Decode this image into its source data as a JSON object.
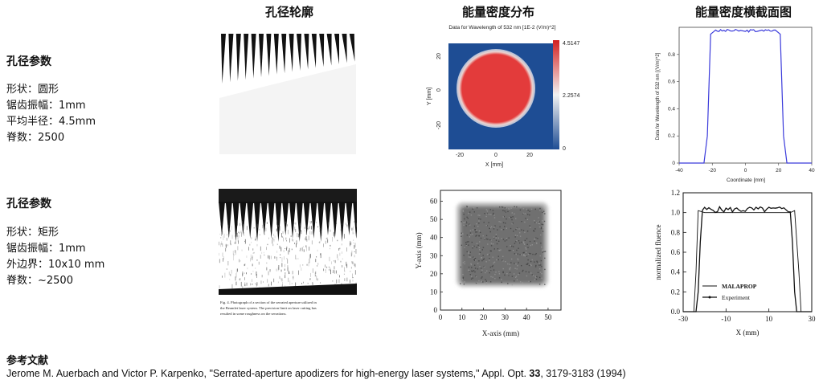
{
  "headers": {
    "col1": "孔径轮廓",
    "col2": "能量密度分布",
    "col3": "能量密度横截面图"
  },
  "row1": {
    "title": "孔径参数",
    "params": [
      "形状：圆形",
      "锯齿振幅：1mm",
      "平均半径：4.5mm",
      "脊数：2500"
    ]
  },
  "row2": {
    "title": "孔径参数",
    "params": [
      "形状：矩形",
      "锯齿振幅：1mm",
      "外边界：10x10 mm",
      "脊数：~2500"
    ]
  },
  "heatmap": {
    "title": "Data for Wavelength of 532 nm  [1E-2 (V/m)^2]",
    "xlabel": "X [mm]",
    "ylabel": "Y [mm]",
    "xticks": [
      "-20",
      "0",
      "20"
    ],
    "yticks": [
      "20",
      "0",
      "-20"
    ],
    "colorbar_ticks": [
      "4.5147",
      "2.2574",
      "0"
    ],
    "colors": {
      "background": "#1e4d94",
      "disk": "#e33b3b",
      "edge": "#c9d6e8"
    }
  },
  "profile": {
    "xlabel": "Coordinate [mm]",
    "ylabel": "Data for Wavelength of 532 nm [(V/m)^2]",
    "xticks": [
      "-40",
      "-20",
      "0",
      "20",
      "40"
    ],
    "yticks": [
      "0",
      "0.2",
      "0.4",
      "0.6",
      "0.8"
    ],
    "line_color": "#3b3bdb"
  },
  "chart_data": {
    "type": "line",
    "x": [
      -40,
      -25,
      -23,
      -21,
      -18,
      -10,
      0,
      10,
      18,
      21,
      23,
      25,
      40
    ],
    "y": [
      0,
      0,
      0.2,
      0.95,
      0.98,
      0.98,
      0.97,
      0.98,
      0.98,
      0.95,
      0.2,
      0,
      0
    ],
    "xlabel": "Coordinate [mm]",
    "ylabel": "Data for Wavelength of 532 nm [(V/m)^2]",
    "xlim": [
      -40,
      40
    ],
    "ylim": [
      0,
      1
    ]
  },
  "scan": {
    "xlabel": "X-axis (mm)",
    "ylabel": "Y-axis (mm)",
    "xticks": [
      "0",
      "10",
      "20",
      "30",
      "40",
      "50"
    ],
    "yticks": [
      "0",
      "10",
      "20",
      "30",
      "40",
      "50",
      "60"
    ]
  },
  "fluence": {
    "ylabel": "normalized fluence",
    "xlabel": "X  (mm)",
    "xticks": [
      "-30",
      "-10",
      "10",
      "30"
    ],
    "yticks": [
      "0.0",
      "0.2",
      "0.4",
      "0.6",
      "0.8",
      "1.0",
      "1.2"
    ],
    "legend": [
      "MALAPROP",
      "Experiment"
    ]
  },
  "photo": {
    "caption_line1": "Fig. 4.    Photograph of a section of the serrated aperture utilized in",
    "caption_line2": "the Beamlet laser system.    The precision limit on laser cutting has",
    "caption_line3": "resulted in some roughness on the serrations."
  },
  "reference": {
    "title": "参考文献",
    "text_before": "Jerome M. Auerbach and Victor P. Karpenko, \"Serrated-aperture apodizers for high-energy laser systems,\" Appl. Opt. ",
    "volume": "33",
    "text_after": ", 3179-3183 (1994)"
  }
}
